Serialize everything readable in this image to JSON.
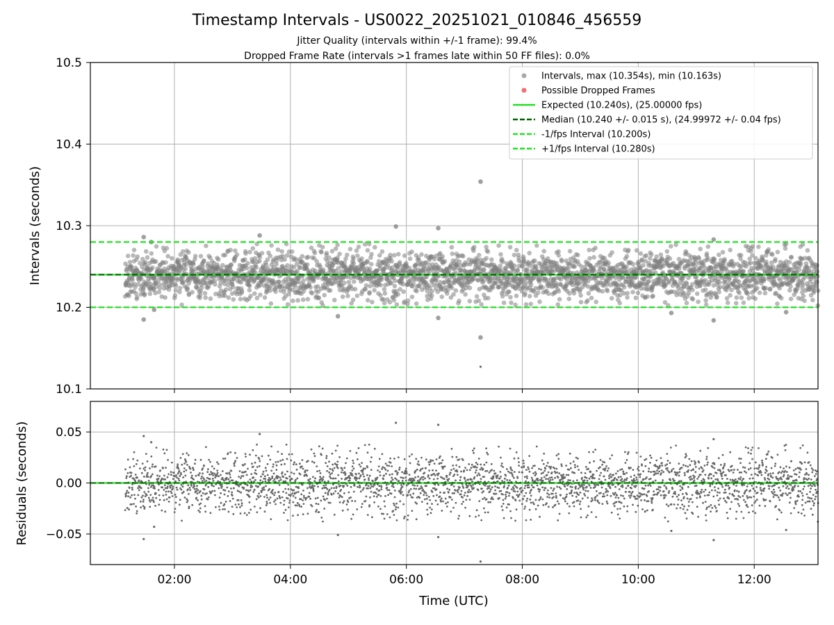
{
  "chart_data": {
    "type": "scatter",
    "title": "Timestamp Intervals - US0022_20251021_010846_456559",
    "subtitle_jitter": "Jitter Quality (intervals within +/-1 frame): 99.4%",
    "subtitle_dropped": "Dropped Frame Rate (intervals >1 frames late within 50 FF files): 0.0%",
    "x_label": "Time (UTC)",
    "x_range_hours": [
      0.55,
      13.1
    ],
    "x_ticks": [
      {
        "value": 2,
        "label": "02:00"
      },
      {
        "value": 4,
        "label": "04:00"
      },
      {
        "value": 6,
        "label": "06:00"
      },
      {
        "value": 8,
        "label": "08:00"
      },
      {
        "value": 10,
        "label": "10:00"
      },
      {
        "value": 12,
        "label": "12:00"
      }
    ],
    "data_start_hour": 1.15,
    "data_end_hour": 13.1,
    "point_color": "#808080",
    "top": {
      "ylabel": "Intervals (seconds)",
      "ylim": [
        10.1,
        10.5
      ],
      "y_ticks": [
        {
          "value": 10.1,
          "label": "10.1"
        },
        {
          "value": 10.2,
          "label": "10.2"
        },
        {
          "value": 10.3,
          "label": "10.3"
        },
        {
          "value": 10.4,
          "label": "10.4"
        },
        {
          "value": 10.5,
          "label": "10.5"
        }
      ],
      "expected": 10.24,
      "median": 10.24,
      "lower": 10.2,
      "upper": 10.28,
      "median_std": 0.015,
      "outliers": [
        {
          "x": 1.47,
          "y": 10.286
        },
        {
          "x": 1.47,
          "y": 10.185
        },
        {
          "x": 1.6,
          "y": 10.28
        },
        {
          "x": 1.65,
          "y": 10.197
        },
        {
          "x": 3.47,
          "y": 10.288
        },
        {
          "x": 4.82,
          "y": 10.189
        },
        {
          "x": 5.82,
          "y": 10.299
        },
        {
          "x": 6.55,
          "y": 10.297
        },
        {
          "x": 6.55,
          "y": 10.187
        },
        {
          "x": 7.28,
          "y": 10.354
        },
        {
          "x": 7.28,
          "y": 10.163
        },
        {
          "x": 10.57,
          "y": 10.193
        },
        {
          "x": 11.3,
          "y": 10.184
        },
        {
          "x": 11.3,
          "y": 10.283
        },
        {
          "x": 12.55,
          "y": 10.194
        }
      ]
    },
    "bottom": {
      "ylabel": "Residuals (seconds)",
      "ylim": [
        -0.08,
        0.08
      ],
      "y_ticks": [
        {
          "value": 0.05,
          "label": "0.05"
        },
        {
          "value": 0.0,
          "label": "0.00"
        },
        {
          "value": -0.05,
          "label": "−0.05"
        }
      ]
    },
    "legend": [
      {
        "kind": "dot",
        "color": "#a0a0a0",
        "label": "Intervals, max (10.354s), min (10.163s)"
      },
      {
        "kind": "dot",
        "color": "#f06060",
        "label": "Possible Dropped Frames"
      },
      {
        "kind": "solid",
        "color": "#22e022",
        "label": "Expected (10.240s), (25.00000 fps)"
      },
      {
        "kind": "dashed",
        "color": "#006400",
        "label": "Median (10.240 +/- 0.015 s), (24.99972 +/- 0.04 fps)"
      },
      {
        "kind": "dashed",
        "color": "#22e022",
        "label": "-1/fps Interval (10.200s)"
      },
      {
        "kind": "dashed",
        "color": "#22e022",
        "label": "+1/fps Interval (10.280s)"
      }
    ]
  }
}
